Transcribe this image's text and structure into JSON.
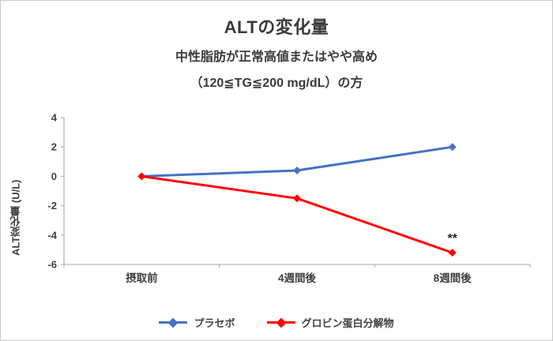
{
  "header": {
    "title": "ALTの変化量",
    "subtitle_line1": "中性脂肪が正常高値またはやや高め",
    "subtitle_line2": "（120≦TG≦200 mg/dL）の方"
  },
  "chart_data": {
    "type": "line",
    "categories": [
      "摂取前",
      "4週間後",
      "8週間後"
    ],
    "series": [
      {
        "name": "プラセボ",
        "color": "#4472C4",
        "values": [
          0,
          0.4,
          2.0
        ]
      },
      {
        "name": "グロビン蛋白分解物",
        "color": "#FF0000",
        "values": [
          0,
          -1.5,
          -5.2
        ]
      }
    ],
    "title": "ALTの変化量",
    "xlabel": "",
    "ylabel": "ALT変化量 (U/L)",
    "ylim": [
      -6,
      4
    ],
    "yticks": [
      4,
      2,
      0,
      -2,
      -4,
      -6
    ],
    "grid": false,
    "legend_position": "bottom",
    "annotation": {
      "text": "**",
      "series": 1,
      "point": 2
    },
    "axis_color": "#A6A6A6",
    "label_color": "#404040"
  }
}
